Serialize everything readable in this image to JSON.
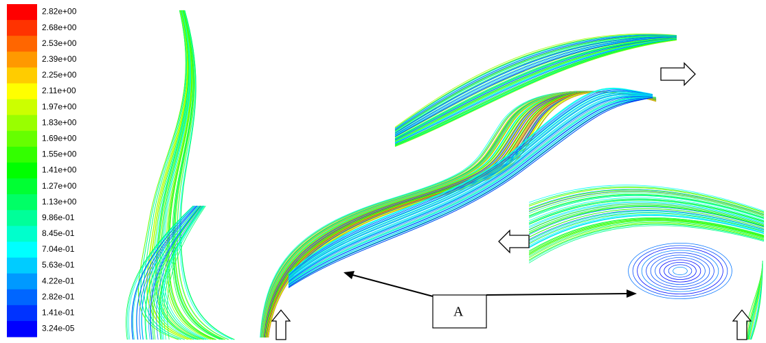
{
  "legend": {
    "labels": [
      "2.82e+00",
      "2.68e+00",
      "2.53e+00",
      "2.39e+00",
      "2.25e+00",
      "2.11e+00",
      "1.97e+00",
      "1.83e+00",
      "1.69e+00",
      "1.55e+00",
      "1.41e+00",
      "1.27e+00",
      "1.13e+00",
      "9.86e-01",
      "8.45e-01",
      "7.04e-01",
      "5.63e-01",
      "4.22e-01",
      "2.82e-01",
      "1.41e-01",
      "3.24e-05"
    ]
  },
  "annotation": {
    "label": "A"
  }
}
